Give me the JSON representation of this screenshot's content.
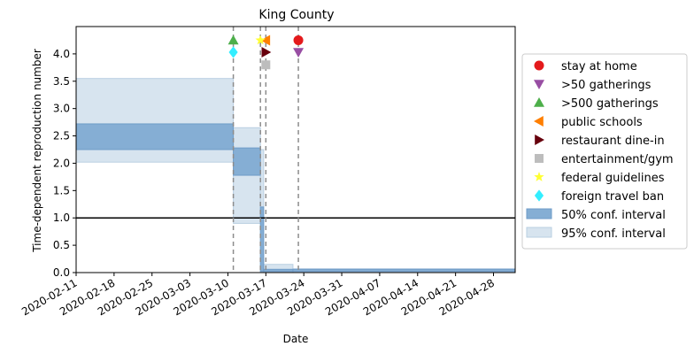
{
  "chart_data": {
    "type": "step-area",
    "title": "King County",
    "xlabel": "Date",
    "ylabel": "Time-dependent reproduction number",
    "x_ticks": [
      "2020-02-11",
      "2020-02-18",
      "2020-02-25",
      "2020-03-03",
      "2020-03-10",
      "2020-03-17",
      "2020-03-24",
      "2020-03-31",
      "2020-04-07",
      "2020-04-14",
      "2020-04-21",
      "2020-04-28"
    ],
    "y_ticks": [
      "0.0",
      "0.5",
      "1.0",
      "1.5",
      "2.0",
      "2.5",
      "3.0",
      "3.5",
      "4.0"
    ],
    "xlim": [
      "2020-02-11",
      "2020-05-02"
    ],
    "ylim": [
      0,
      4.5
    ],
    "reference_line": 1.0,
    "segments": [
      {
        "start": "2020-02-11",
        "end": "2020-03-11",
        "ci50": [
          2.25,
          2.72
        ],
        "ci95": [
          2.02,
          3.55
        ]
      },
      {
        "start": "2020-03-11",
        "end": "2020-03-16",
        "ci50": [
          1.78,
          2.28
        ],
        "ci95": [
          0.9,
          2.65
        ]
      },
      {
        "start": "2020-03-16",
        "end": "2020-03-16.6",
        "ci50": [
          0.02,
          1.2
        ],
        "ci95": [
          0.0,
          2.25
        ]
      },
      {
        "start": "2020-03-16.6",
        "end": "2020-03-22",
        "ci50": [
          0.02,
          0.06
        ],
        "ci95": [
          0.0,
          0.15
        ]
      },
      {
        "start": "2020-03-22",
        "end": "2020-05-02",
        "ci50": [
          0.02,
          0.06
        ],
        "ci95": [
          0.0,
          0.07
        ]
      }
    ],
    "interventions": [
      {
        "name": "stay at home",
        "date": "2020-03-23",
        "y": 4.25,
        "marker": "circle",
        "color": "#e41a1c"
      },
      {
        "name": ">50 gatherings",
        "date": "2020-03-23",
        "y": 4.03,
        "marker": "triangle-down",
        "color": "#984ea3"
      },
      {
        "name": ">500 gatherings",
        "date": "2020-03-11",
        "y": 4.25,
        "marker": "triangle-up",
        "color": "#4daf4a"
      },
      {
        "name": "public schools",
        "date": "2020-03-17",
        "y": 4.25,
        "marker": "triangle-left",
        "color": "#ff7f00"
      },
      {
        "name": "restaurant dine-in",
        "date": "2020-03-17",
        "y": 4.03,
        "marker": "triangle-right",
        "color": "#67000d"
      },
      {
        "name": "entertainment/gym",
        "date": "2020-03-17",
        "y": 3.8,
        "marker": "square",
        "color": "#bdbdbd"
      },
      {
        "name": "federal guidelines",
        "date": "2020-03-16",
        "y": 4.25,
        "marker": "star",
        "color": "#ffff33"
      },
      {
        "name": "foreign travel ban",
        "date": "2020-03-11",
        "y": 4.03,
        "marker": "diamond",
        "color": "#33eeff"
      }
    ],
    "vlines": [
      "2020-03-11",
      "2020-03-16",
      "2020-03-17",
      "2020-03-23"
    ],
    "legend": {
      "placement": "right",
      "entries": [
        {
          "label": "stay at home",
          "marker": "circle",
          "color": "#e41a1c"
        },
        {
          "label": ">50 gatherings",
          "marker": "triangle-down",
          "color": "#984ea3"
        },
        {
          "label": ">500 gatherings",
          "marker": "triangle-up",
          "color": "#4daf4a"
        },
        {
          "label": "public schools",
          "marker": "triangle-left",
          "color": "#ff7f00"
        },
        {
          "label": "restaurant dine-in",
          "marker": "triangle-right",
          "color": "#67000d"
        },
        {
          "label": "entertainment/gym",
          "marker": "square",
          "color": "#bdbdbd"
        },
        {
          "label": "federal guidelines",
          "marker": "star",
          "color": "#ffff33"
        },
        {
          "label": "foreign travel ban",
          "marker": "diamond",
          "color": "#33eeff"
        },
        {
          "label": "50% conf. interval",
          "marker": "patch",
          "color": "#85aed4"
        },
        {
          "label": "95% conf. interval",
          "marker": "patch",
          "color": "#d7e4ef"
        }
      ]
    },
    "colors": {
      "ci50": "#85aed4",
      "ci95": "#d7e4ef",
      "ci50_edge": "#6f9cc8",
      "ci95_edge": "#b9cfe2",
      "vline": "#8c8c8c",
      "ref_line": "#000000"
    }
  }
}
